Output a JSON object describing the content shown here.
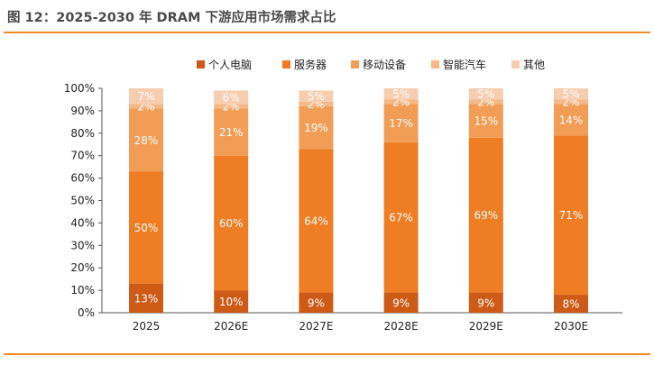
{
  "figure": {
    "title": "图 12：2025-2030 年 DRAM 下游应用市场需求占比",
    "source_fragment": ""
  },
  "colors": {
    "rule": "#f08a24",
    "series": [
      "#cd5a16",
      "#ee7d24",
      "#f29d55",
      "#f5b888",
      "#f7cdb0"
    ]
  },
  "chart_data": {
    "type": "bar",
    "stacked": true,
    "title": "",
    "xlabel": "",
    "ylabel": "",
    "ylim": [
      0,
      100
    ],
    "y_ticks": [
      "0%",
      "10%",
      "20%",
      "30%",
      "40%",
      "50%",
      "60%",
      "70%",
      "80%",
      "90%",
      "100%"
    ],
    "categories": [
      "2025",
      "2026E",
      "2027E",
      "2028E",
      "2029E",
      "2030E"
    ],
    "legend_position": "top-center",
    "grid": false,
    "series": [
      {
        "name": "个人电脑",
        "values": [
          13,
          10,
          9,
          9,
          9,
          8
        ]
      },
      {
        "name": "服务器",
        "values": [
          50,
          60,
          64,
          67,
          69,
          71
        ]
      },
      {
        "name": "移动设备",
        "values": [
          28,
          21,
          19,
          17,
          15,
          14
        ]
      },
      {
        "name": "智能汽车",
        "values": [
          2,
          2,
          2,
          2,
          2,
          2
        ]
      },
      {
        "name": "其他",
        "values": [
          7,
          6,
          5,
          5,
          5,
          5
        ]
      }
    ]
  }
}
